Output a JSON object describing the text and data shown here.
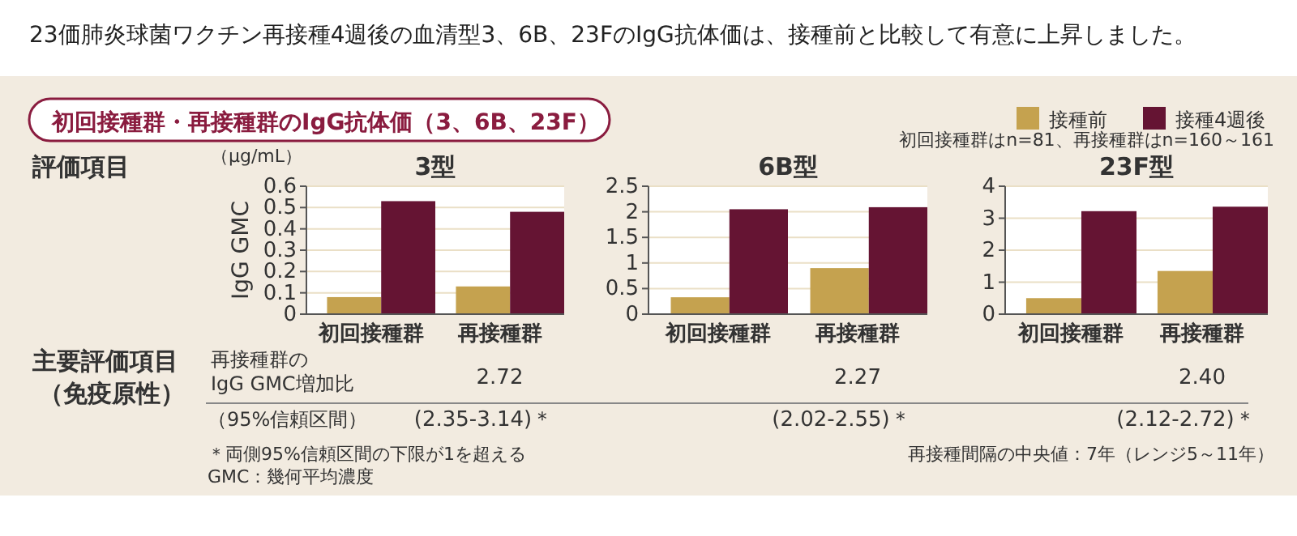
{
  "chart_data": [
    {
      "type": "bar",
      "title": "3型",
      "ylabel": "IgG GMC",
      "categories": [
        "初回接種群",
        "再接種群"
      ],
      "series": [
        {
          "color": "#c5a24f",
          "values": [
            0.08,
            0.13
          ]
        },
        {
          "color": "#651433",
          "values": [
            0.53,
            0.48
          ]
        }
      ],
      "ylim": [
        0,
        0.6
      ],
      "yticks": [
        0,
        0.1,
        0.2,
        0.3,
        0.4,
        0.5,
        0.6
      ],
      "grid": "y",
      "annotations": [
        "2.72",
        "(2.35-3.14)＊"
      ]
    },
    {
      "type": "bar",
      "title": "6B型",
      "categories": [
        "初回接種群",
        "再接種群"
      ],
      "series": [
        {
          "color": "#c5a24f",
          "values": [
            0.33,
            0.9
          ]
        },
        {
          "color": "#651433",
          "values": [
            2.05,
            2.09
          ]
        }
      ],
      "ylim": [
        0,
        2.5
      ],
      "yticks": [
        0,
        0.5,
        1,
        1.5,
        2,
        2.5
      ],
      "grid": "y",
      "annotations": [
        "2.27",
        "(2.02-2.55)＊"
      ]
    },
    {
      "type": "bar",
      "title": "23F型",
      "categories": [
        "初回接種群",
        "再接種群"
      ],
      "series": [
        {
          "name": "接種前",
          "color": "#c5a24f",
          "values": [
            0.5,
            1.35
          ]
        },
        {
          "name": "接種4週後",
          "color": "#651433",
          "values": [
            3.22,
            3.36
          ]
        }
      ],
      "ylim": [
        0,
        4
      ],
      "yticks": [
        0,
        1,
        2,
        3,
        4
      ],
      "grid": "y",
      "legend": "top right",
      "annotations": [
        "2.40",
        "(2.12-2.72)＊"
      ]
    },
    {
      "type": "other",
      "title": "23価肺炎球菌ワクチン再接種4週後の血清型3、6B、23FのIgG抗体価は、接種前と比較して有意に上昇しました。",
      "subtitle": "初回接種群・再接種群のIgG抗体価（3、6B、23F）",
      "annotations": [
        "評価項目",
        "主要評価項目",
        "（免疫原性）",
        "再接種群の",
        "IgG GMC増加比",
        "（95%信頼区間）",
        "＊両側95%信頼区間の下限が1を超える",
        "GMC：幾何平均濃度",
        "初回接種群はn=81、再接種群はn=160～161",
        "再接種間隔の中央値：7年（レンジ5～11年）",
        "（μg/mL）"
      ]
    }
  ]
}
